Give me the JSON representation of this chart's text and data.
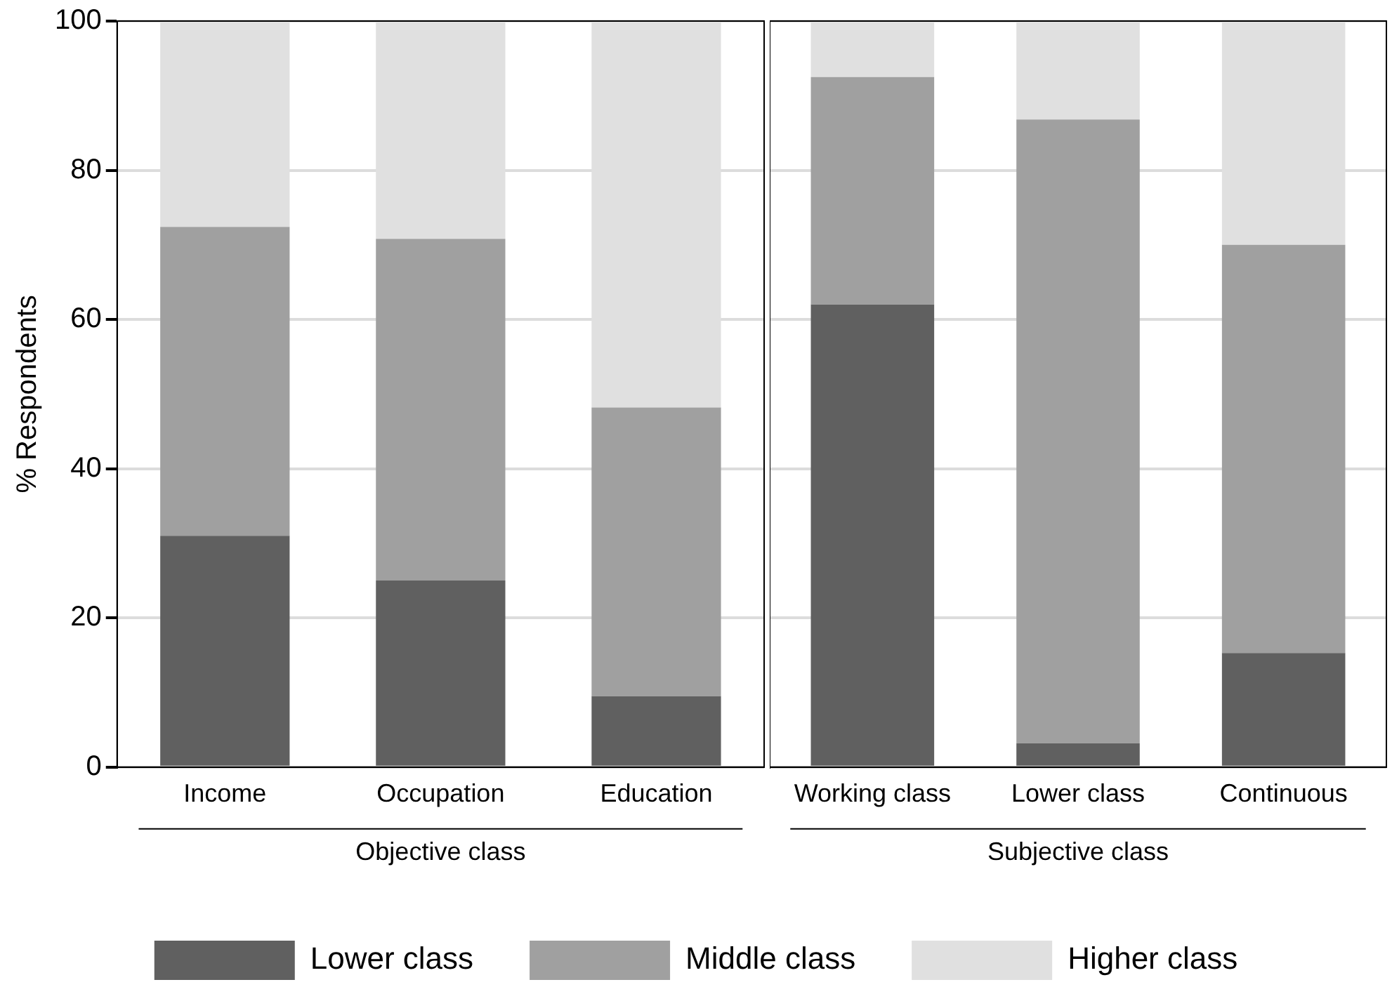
{
  "chart_data": [
    {
      "type": "bar",
      "stacked": true,
      "ylabel": "% Respondents",
      "xlabel": "Objective class",
      "categories": [
        "Income",
        "Occupation",
        "Education"
      ],
      "series": [
        {
          "name": "Lower class",
          "color": "#606060",
          "values": [
            31,
            25,
            9.5
          ]
        },
        {
          "name": "Middle class",
          "color": "#a0a0a0",
          "values": [
            41.4,
            45.8,
            38.7
          ]
        },
        {
          "name": "Higher class",
          "color": "#e0e0e0",
          "values": [
            27.6,
            29.2,
            51.8
          ]
        }
      ],
      "ylim": [
        0,
        100
      ],
      "yticks": [
        0,
        20,
        40,
        60,
        80,
        100
      ],
      "grid": "y",
      "legend": "bottom"
    },
    {
      "type": "bar",
      "stacked": true,
      "xlabel": "Subjective class",
      "categories": [
        "Working class",
        "Lower class",
        "Continuous"
      ],
      "series": [
        {
          "color": "#606060",
          "values": [
            62,
            3.2,
            15.3
          ]
        },
        {
          "color": "#a0a0a0",
          "values": [
            30.5,
            83.6,
            54.7
          ]
        },
        {
          "color": "#e0e0e0",
          "values": [
            7.5,
            13.2,
            30
          ]
        }
      ],
      "ylim": [
        0,
        100
      ],
      "yticks": [
        0,
        20,
        40,
        60,
        80,
        100
      ],
      "grid": "y",
      "tick_labels": "x"
    }
  ]
}
